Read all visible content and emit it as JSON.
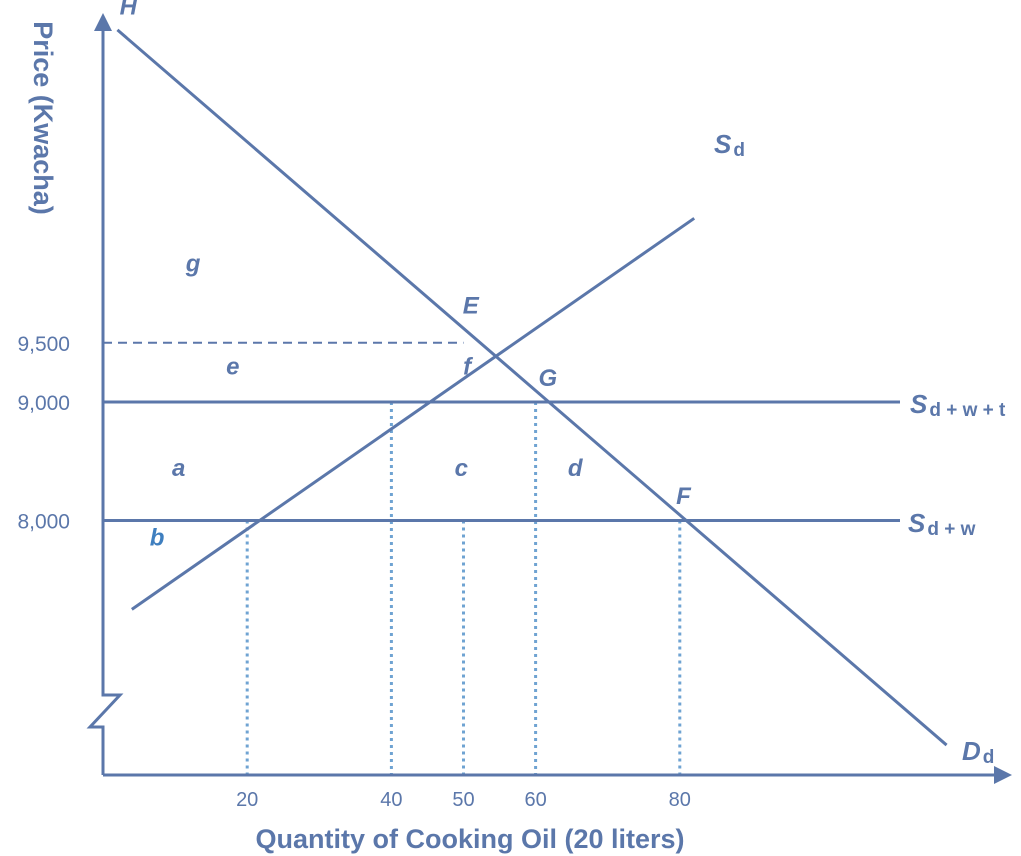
{
  "colors": {
    "line": "#5b77aa",
    "dotted": "#6fa3d2",
    "text": "#5b77aa",
    "region_b": "#3f7fbf"
  },
  "chart_data": {
    "type": "line",
    "xlabel": "Quantity of Cooking Oil (20 liters)",
    "ylabel": "Price (Kwacha)",
    "x_ticks": [
      {
        "value": 20,
        "label": "20"
      },
      {
        "value": 40,
        "label": "40"
      },
      {
        "value": 50,
        "label": "50"
      },
      {
        "value": 60,
        "label": "60"
      },
      {
        "value": 80,
        "label": "80"
      }
    ],
    "y_ticks": [
      {
        "value": 9500,
        "label": "9,500"
      },
      {
        "value": 9000,
        "label": "9,000"
      },
      {
        "value": 8000,
        "label": "8,000"
      }
    ],
    "axis_break": "y",
    "series": [
      {
        "key": "demand",
        "label": "D",
        "sub": "d",
        "points": [
          [
            2,
            12140
          ],
          [
            117,
            6105
          ]
        ]
      },
      {
        "key": "supply",
        "label": "S",
        "sub": "d",
        "points": [
          [
            4,
            7250
          ],
          [
            82,
            10550
          ]
        ]
      },
      {
        "key": "world_tariff",
        "label": "S",
        "sub": "d + w + t",
        "points": [
          [
            0,
            9000
          ],
          [
            110,
            9000
          ]
        ]
      },
      {
        "key": "world",
        "label": "S",
        "sub": "d + w",
        "points": [
          [
            0,
            8000
          ],
          [
            110,
            8000
          ]
        ]
      }
    ],
    "price_guides": [
      {
        "y": 9500,
        "x_to": 50,
        "style": "dashed"
      }
    ],
    "quantity_guides": [
      {
        "x": 20,
        "y_from": 8000
      },
      {
        "x": 40,
        "y_from": 9000
      },
      {
        "x": 50,
        "y_from": 8000
      },
      {
        "x": 60,
        "y_from": 9000
      },
      {
        "x": 80,
        "y_from": 8000
      }
    ],
    "point_labels": [
      {
        "text": "H",
        "x": 3.5,
        "y": 12270
      },
      {
        "text": "E",
        "x": 51,
        "y": 9745
      },
      {
        "text": "G",
        "x": 61.7,
        "y": 9135
      },
      {
        "text": "F",
        "x": 80.5,
        "y": 8140
      }
    ],
    "region_labels": [
      {
        "text": "g",
        "x": 12.5,
        "y": 10100
      },
      {
        "text": "e",
        "x": 18,
        "y": 9230
      },
      {
        "text": "f",
        "x": 50.5,
        "y": 9230
      },
      {
        "text": "a",
        "x": 10.5,
        "y": 8375
      },
      {
        "text": "c",
        "x": 49.7,
        "y": 8375
      },
      {
        "text": "d",
        "x": 65.5,
        "y": 8375
      },
      {
        "text": "b",
        "x": 7.5,
        "y": 7790
      }
    ]
  }
}
